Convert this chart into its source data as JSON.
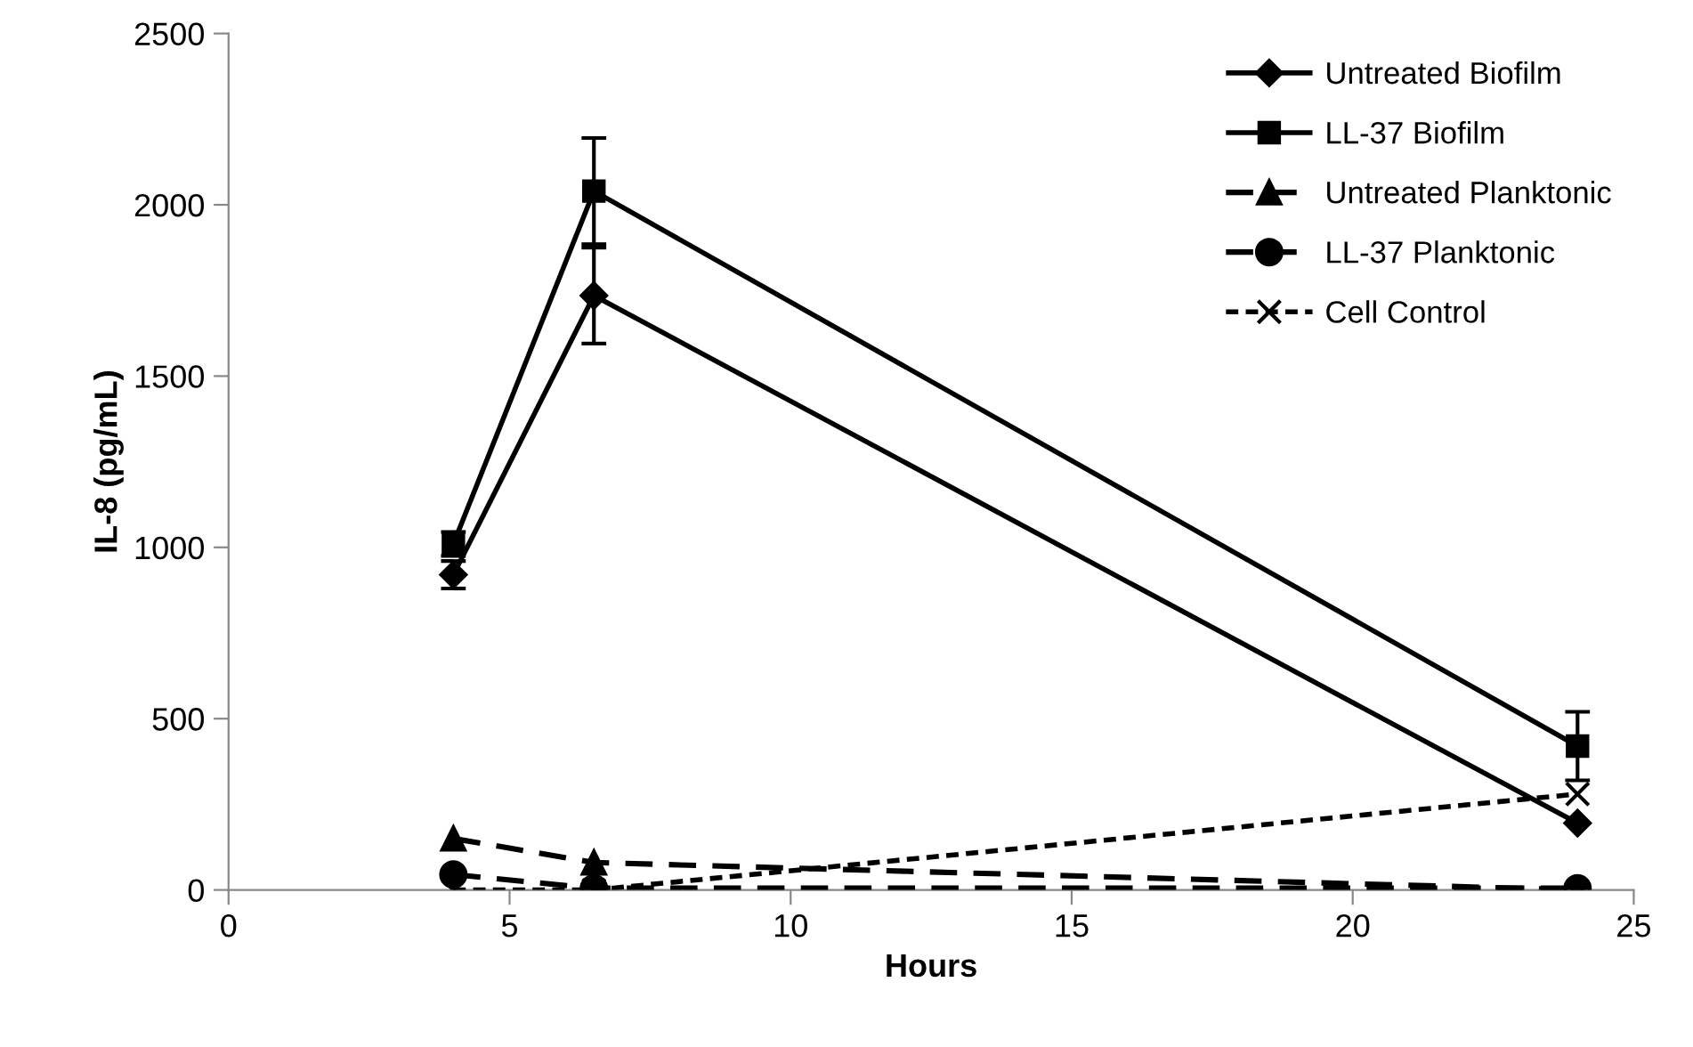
{
  "chart_data": {
    "type": "line",
    "xlabel": "Hours",
    "ylabel": "IL-8 (pg/mL)",
    "x": [
      4,
      6.5,
      24
    ],
    "xlim": [
      0,
      25
    ],
    "xticks": [
      0,
      5,
      10,
      15,
      20,
      25
    ],
    "ylim": [
      0,
      2500
    ],
    "yticks": [
      0,
      500,
      1000,
      1500,
      2000,
      2500
    ],
    "grid": false,
    "legend": "top right",
    "series": [
      {
        "name": "Untreated Biofilm",
        "color": "#000000",
        "marker": "diamond",
        "line_style": "solid",
        "values": [
          920,
          1735,
          195
        ],
        "errors": [
          40,
          140,
          null
        ]
      },
      {
        "name": "LL-37 Biofilm",
        "color": "#000000",
        "marker": "square",
        "line_style": "solid",
        "values": [
          1010,
          2040,
          420
        ],
        "errors": [
          35,
          155,
          100
        ]
      },
      {
        "name": "Untreated Planktonic",
        "color": "#000000",
        "marker": "triangle",
        "line_style": "dashed",
        "values": [
          150,
          80,
          0
        ]
      },
      {
        "name": "LL-37 Planktonic",
        "color": "#000000",
        "marker": "circle",
        "line_style": "dashed",
        "values": [
          45,
          5,
          5
        ]
      },
      {
        "name": "Cell Control",
        "color": "#000000",
        "marker": "cross",
        "line_style": "dotted",
        "values": [
          0,
          0,
          280
        ]
      }
    ]
  }
}
